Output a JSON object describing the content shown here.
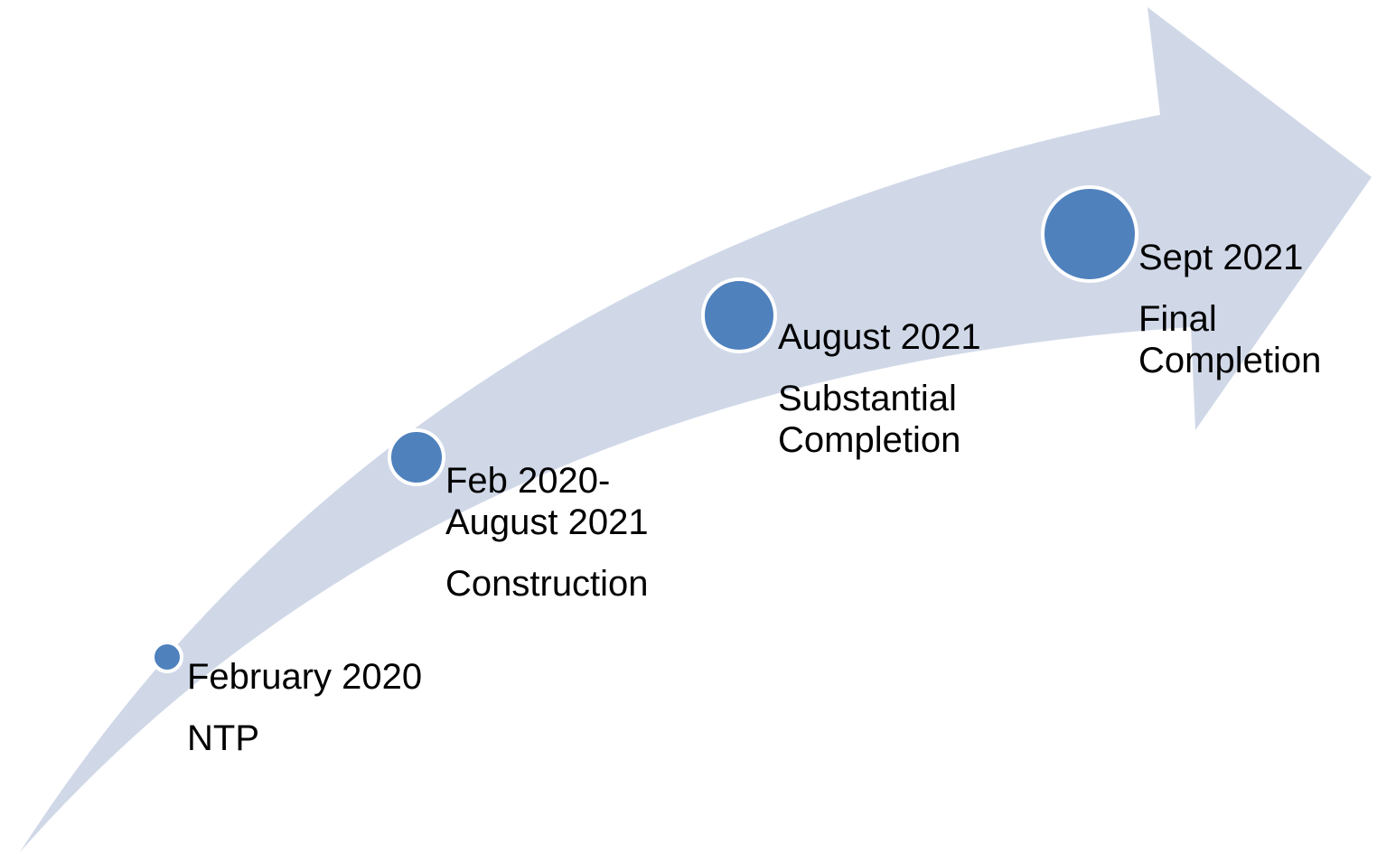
{
  "colors": {
    "arrow_fill": "#d0d8e8",
    "marker_fill": "#4f81bd",
    "marker_stroke": "#ffffff",
    "text": "#000000"
  },
  "milestones": [
    {
      "date": "February 2020",
      "event": "NTP"
    },
    {
      "date": "Feb 2020-\nAugust 2021",
      "event": "Construction"
    },
    {
      "date": "August 2021",
      "event": "Substantial\nCompletion"
    },
    {
      "date": "Sept 2021",
      "event": "Final\nCompletion"
    }
  ]
}
